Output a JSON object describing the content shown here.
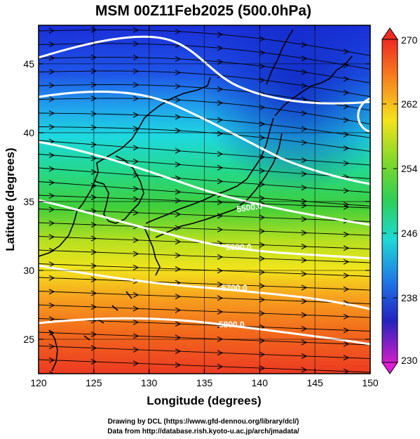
{
  "title": "MSM 00Z11Feb2025 (500.0hPa)",
  "xlabel": "Longitude (degrees)",
  "ylabel": "Latitude  (degrees)",
  "credit_line1": "Drawing by DCL (https://www.gfd-dennou.org/library/dcl/)",
  "credit_line2": "Data from http://database.rish.kyoto-u.ac.jp/arch/jmadata/",
  "map": {
    "lon_range": [
      120,
      150
    ],
    "lat_range": [
      22.5,
      47.8
    ],
    "lon_ticks": [
      "120",
      "125",
      "130",
      "135",
      "140",
      "145",
      "150"
    ],
    "lat_ticks": [
      "25",
      "30",
      "35",
      "40",
      "45"
    ],
    "gridlines": true,
    "field": "temperature (K) shaded, geopotential height contours, wind streamlines",
    "contours": [
      {
        "value": "5500.0",
        "label_lon": 136.2,
        "label_lat": 35.6
      },
      {
        "value": "5600.0",
        "label_lon": 136.5,
        "label_lat": 32.8
      },
      {
        "value": "5700.0",
        "label_lon": 135.5,
        "label_lat": 29.5
      },
      {
        "value": "5800.0",
        "label_lon": 135.5,
        "label_lat": 26.5
      }
    ]
  },
  "colorbar": {
    "ticks": [
      "270",
      "262",
      "254",
      "246",
      "238",
      "230"
    ],
    "min": 230,
    "max": 270
  }
}
